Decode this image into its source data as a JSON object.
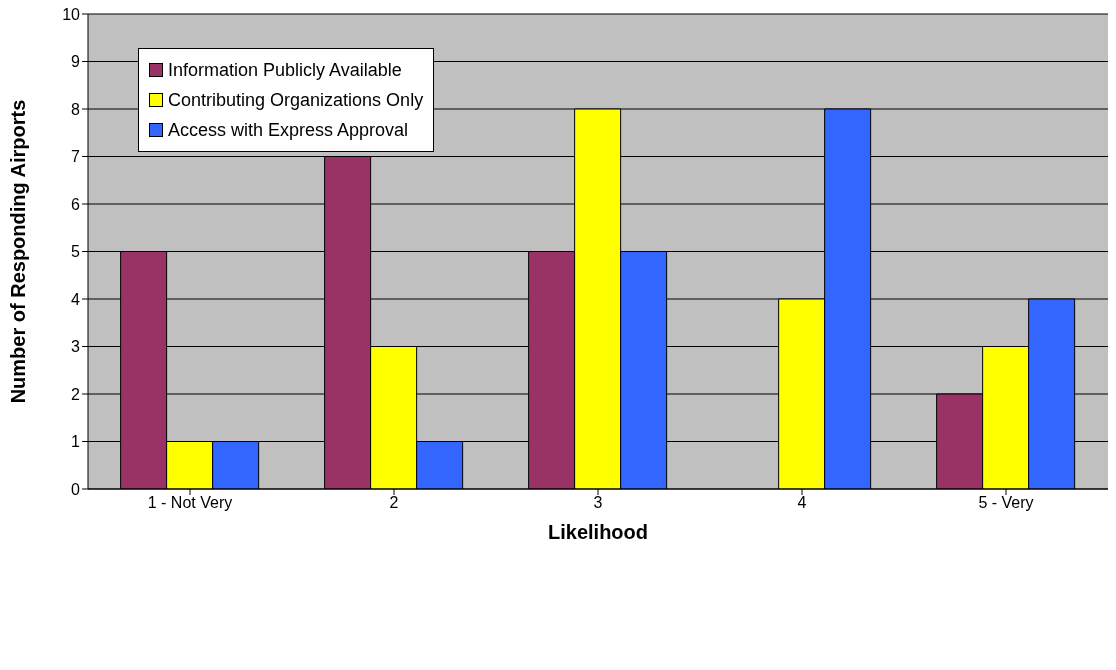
{
  "chart_data": {
    "type": "bar",
    "xlabel": "Likelihood",
    "ylabel": "Number of Responding Airports",
    "categories": [
      "1 - Not Very",
      "2",
      "3",
      "4",
      "5 - Very"
    ],
    "series": [
      {
        "name": "Information Publicly Available",
        "color": "#993366",
        "values": [
          5,
          7,
          5,
          0,
          2
        ]
      },
      {
        "name": "Contributing Organizations Only",
        "color": "#ffff00",
        "values": [
          1,
          3,
          8,
          4,
          3
        ]
      },
      {
        "name": "Access with Express Approval",
        "color": "#3366ff",
        "values": [
          1,
          1,
          5,
          8,
          4
        ]
      }
    ],
    "ylim": [
      0,
      10
    ],
    "yticks": [
      0,
      1,
      2,
      3,
      4,
      5,
      6,
      7,
      8,
      9,
      10
    ],
    "grid": "y",
    "legend": "top left"
  }
}
